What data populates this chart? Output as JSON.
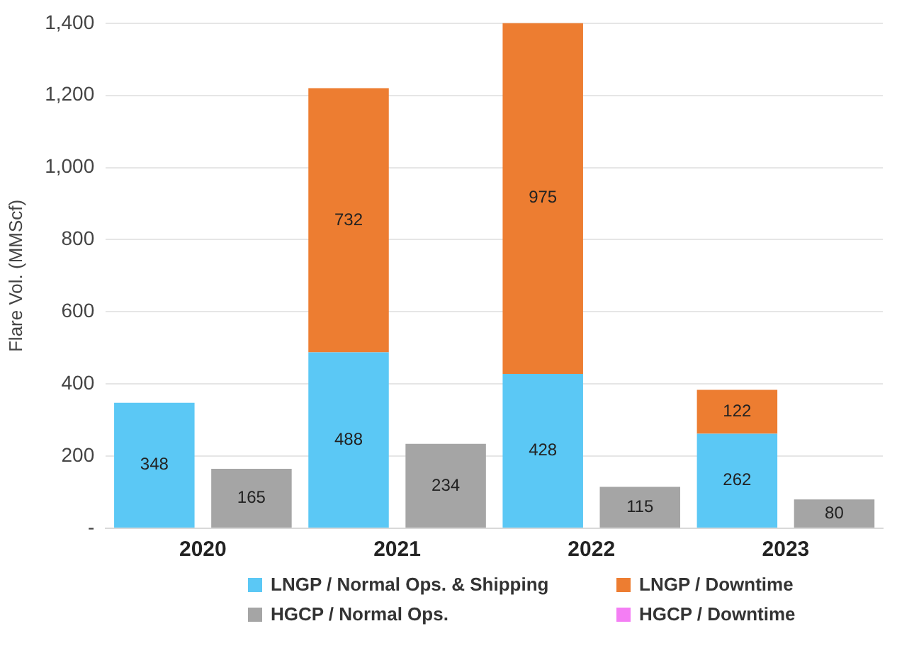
{
  "chart_data": {
    "type": "bar",
    "ylabel": "Flare Vol. (MMScf)",
    "categories": [
      "2020",
      null,
      "2021",
      null,
      "2022",
      null,
      "2023",
      null
    ],
    "stacked": true,
    "legend": "bottom",
    "grid": "y",
    "ylim": [
      0,
      1400
    ],
    "yticks": [
      {
        "value": 0,
        "label": "-"
      },
      200,
      400,
      600,
      800,
      {
        "value": 1000,
        "label": "1,000"
      },
      {
        "value": 1200,
        "label": "1,200"
      },
      {
        "value": 1400,
        "label": "1,400"
      }
    ],
    "series": [
      {
        "name": "LNGP / Normal Ops. & Shipping",
        "color": "#5bc8f5",
        "values": [
          348,
          null,
          488,
          null,
          428,
          null,
          262,
          null
        ],
        "value_labels": [
          "348",
          null,
          "488",
          null,
          "428",
          null,
          "262",
          null
        ]
      },
      {
        "name": "LNGP / Downtime",
        "color": "#ed7d31",
        "values": [
          0,
          null,
          732,
          null,
          975,
          null,
          122,
          null
        ],
        "value_labels": [
          null,
          null,
          "732",
          null,
          "975",
          null,
          "122",
          null
        ]
      },
      {
        "name": "HGCP / Normal Ops.",
        "color": "#a5a5a5",
        "values": [
          null,
          165,
          null,
          234,
          null,
          115,
          null,
          80
        ],
        "value_labels": [
          null,
          "165",
          null,
          "234",
          null,
          "115",
          null,
          "80"
        ]
      },
      {
        "name": "HGCP / Downtime",
        "color": "#f47ef4",
        "values": [
          null,
          0,
          null,
          0,
          null,
          0,
          null,
          0
        ],
        "value_labels": [
          null,
          null,
          null,
          null,
          null,
          null,
          null,
          null
        ]
      }
    ]
  }
}
